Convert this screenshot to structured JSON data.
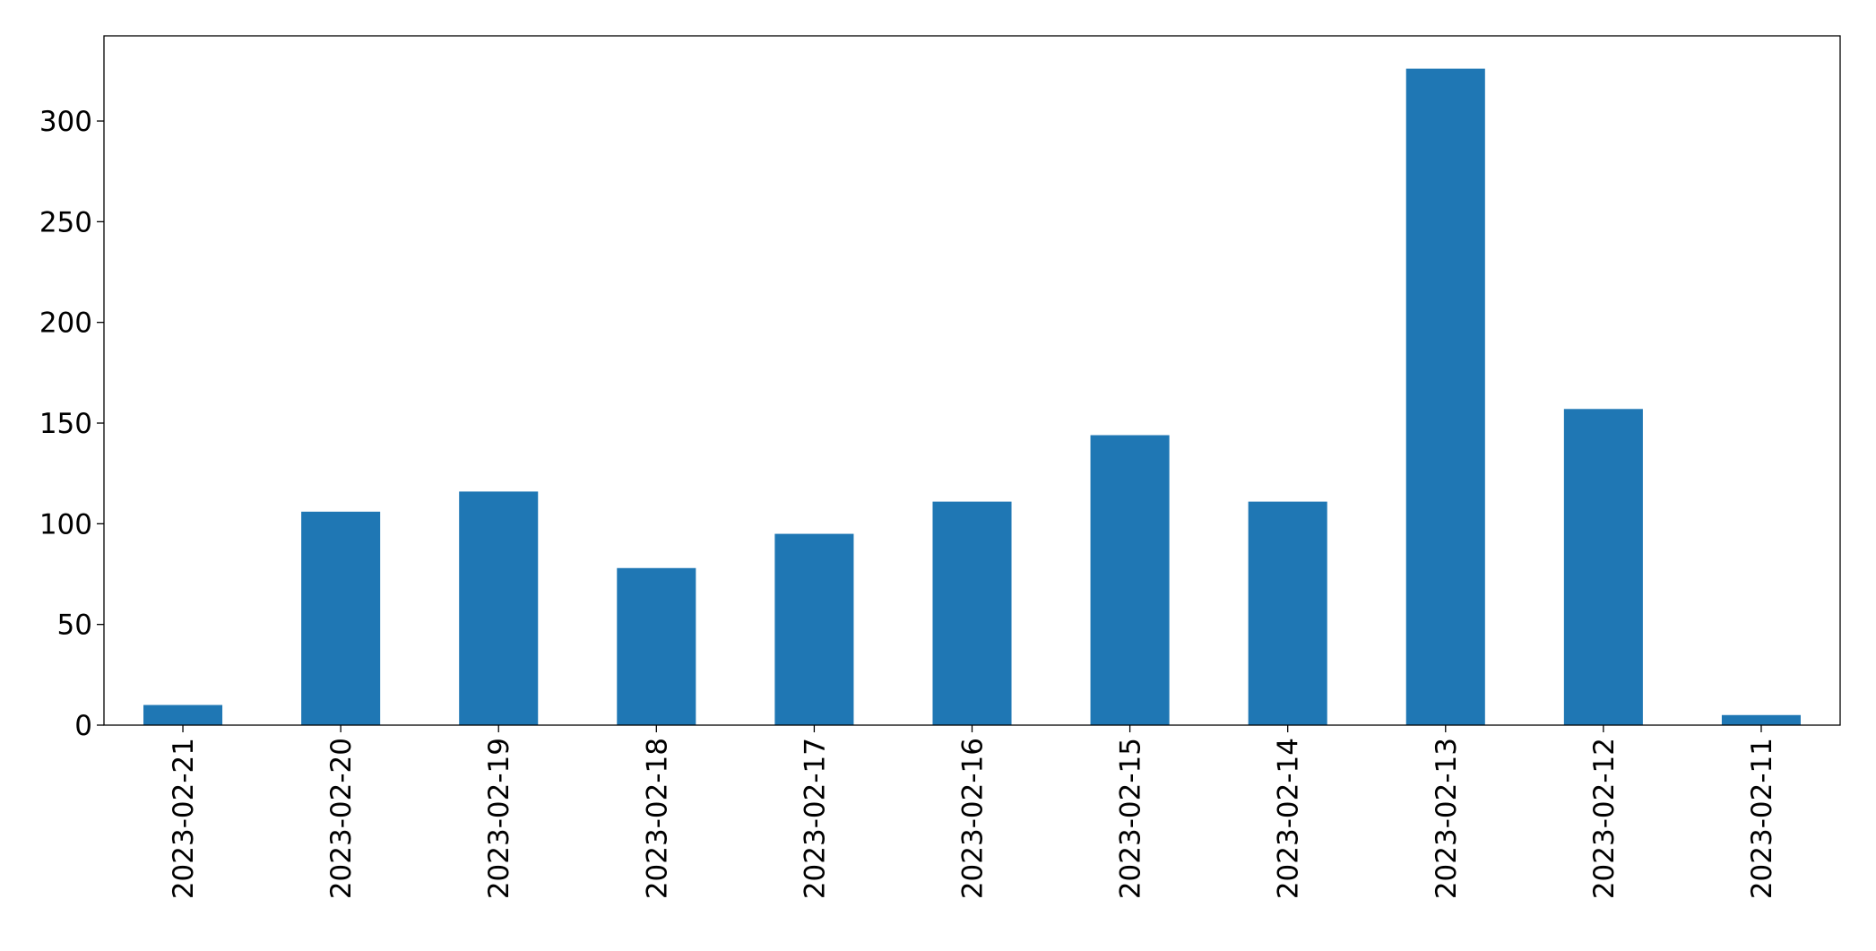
{
  "chart_data": {
    "type": "bar",
    "categories": [
      "2023-02-21",
      "2023-02-20",
      "2023-02-19",
      "2023-02-18",
      "2023-02-17",
      "2023-02-16",
      "2023-02-15",
      "2023-02-14",
      "2023-02-13",
      "2023-02-12",
      "2023-02-11"
    ],
    "values": [
      10,
      106,
      116,
      78,
      95,
      111,
      144,
      111,
      326,
      157,
      5
    ],
    "color": "#1f77b4",
    "ylim": [
      0,
      342.3
    ],
    "yticks": [
      0,
      50,
      100,
      150,
      200,
      250,
      300
    ],
    "grid": false
  }
}
